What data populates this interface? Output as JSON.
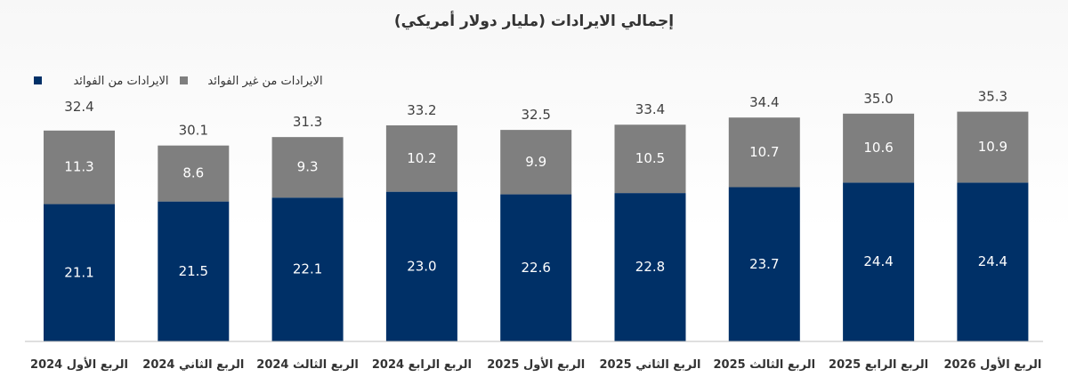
{
  "colors": {
    "interest": "#003067",
    "non_interest": "#7f7f7f",
    "axis": "#bfbfbf"
  },
  "chart_data": {
    "type": "bar",
    "stacked": true,
    "title": "إجمالي الايرادات (مليار دولار أمريكي)",
    "xlabel": "",
    "ylabel": "",
    "legend_position": "top-left",
    "grid": false,
    "ylim": [
      0,
      38
    ],
    "categories": [
      "الربع الأول 2024",
      "الربع الثاني 2024",
      "الربع الثالث 2024",
      "الربع الرابع 2024",
      "الربع الأول 2025",
      "الربع الثاني 2025",
      "الربع الثالث 2025",
      "الربع الرابع 2025",
      "الربع الأول 2026"
    ],
    "series": [
      {
        "name": "الايرادات من الفوائد",
        "color": "#003067",
        "values": [
          21.1,
          21.5,
          22.1,
          23.0,
          22.6,
          22.8,
          23.7,
          24.4,
          24.4
        ],
        "labels": [
          "21.1",
          "21.5",
          "22.1",
          "23.0",
          "22.6",
          "22.8",
          "23.7",
          "24.4",
          "24.4"
        ]
      },
      {
        "name": "الايرادات من غير الفوائد",
        "color": "#7f7f7f",
        "values": [
          11.3,
          8.6,
          9.3,
          10.2,
          9.9,
          10.5,
          10.7,
          10.6,
          10.9
        ],
        "labels": [
          "11.3",
          "8.6",
          "9.3",
          "10.2",
          "9.9",
          "10.5",
          "10.7",
          "10.6",
          "10.9"
        ]
      }
    ],
    "totals": [
      32.4,
      30.1,
      31.3,
      33.2,
      32.5,
      33.4,
      34.4,
      35.0,
      35.3
    ],
    "total_labels": [
      "32.4",
      "30.1",
      "31.3",
      "33.2",
      "32.5",
      "33.4",
      "34.4",
      "35.0",
      "35.3"
    ]
  }
}
